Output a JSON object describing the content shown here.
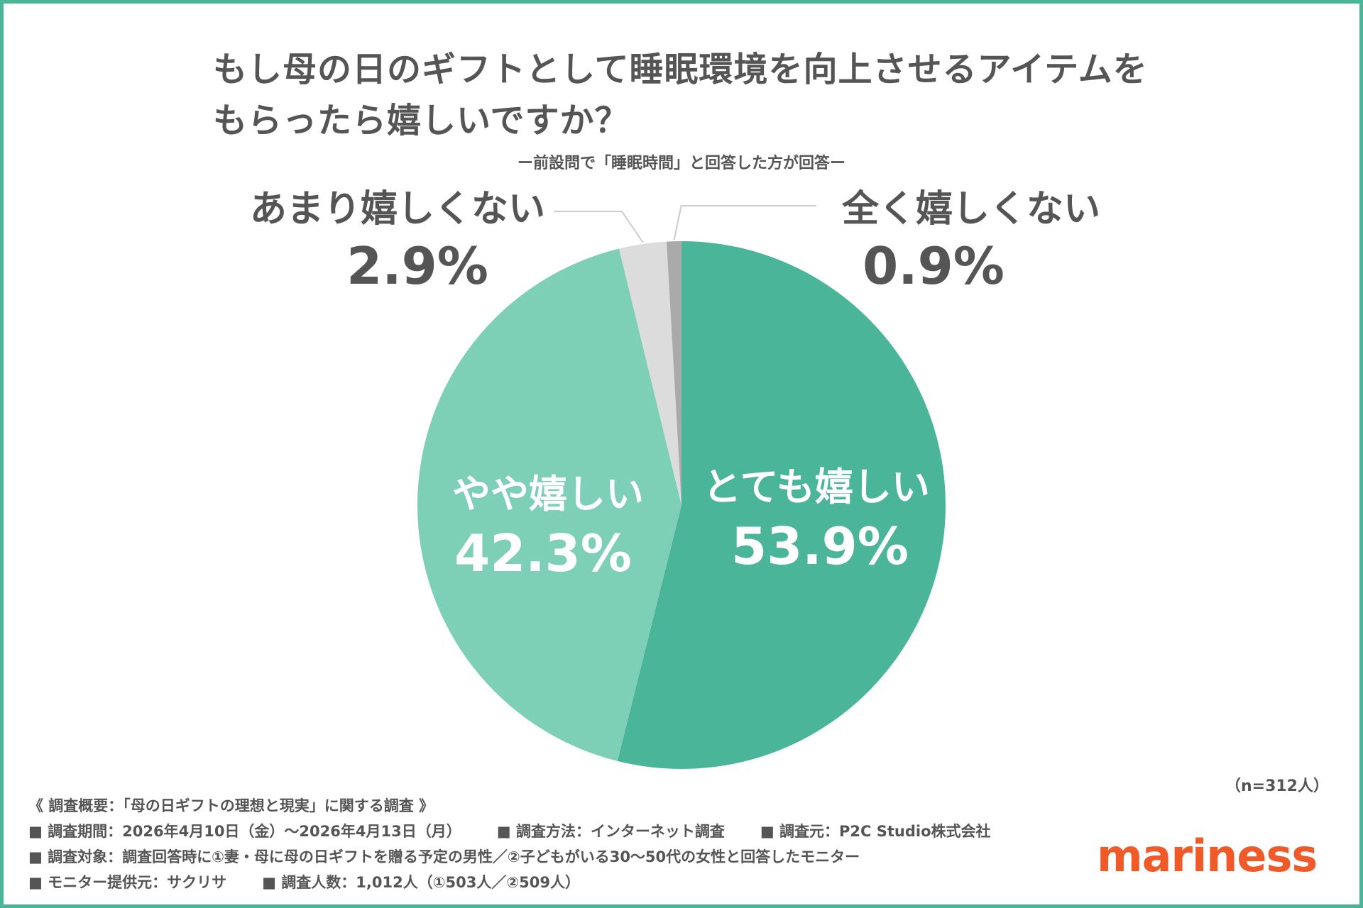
{
  "title_line1": "もし母の日のギフトとして睡眠環境を向上させるアイテムを",
  "title_line2": "もらったら嬉しいですか？",
  "subtitle": "ー前設問で「睡眠時間」と回答した方が回答ー",
  "n_label": "（n=312人）",
  "brand": "mariness",
  "colors": {
    "frame": "#4bb59a",
    "very_happy": "#4bb59a",
    "somewhat_happy": "#7dcfb6",
    "not_very": "#dcdcdc",
    "not_at_all": "#aaaaaa"
  },
  "chart_data": {
    "type": "pie",
    "start_angle_deg": 0,
    "direction": "clockwise",
    "slices": [
      {
        "label": "とても嬉しい",
        "value": 53.9,
        "display": "53.9%",
        "color": "#4bb59a"
      },
      {
        "label": "やや嬉しい",
        "value": 42.3,
        "display": "42.3%",
        "color": "#7dcfb6"
      },
      {
        "label": "あまり嬉しくない",
        "value": 2.9,
        "display": "2.9%",
        "color": "#dcdcdc"
      },
      {
        "label": "全く嬉しくない",
        "value": 0.9,
        "display": "0.9%",
        "color": "#aaaaaa"
      }
    ]
  },
  "footer": {
    "heading": "《 調査概要：「母の日ギフトの理想と現実」に関する調査 》",
    "period": "■ 調査期間：2026年4月10日（金）〜2026年4月13日（月）",
    "method": "■ 調査方法：インターネット調査",
    "source": "■ 調査元：P2C Studio株式会社",
    "target": "■ 調査対象：調査回答時に①妻・母に母の日ギフトを贈る予定の男性／②子どもがいる30〜50代の女性と回答したモニター",
    "provider": "■ モニター提供元：サクリサ",
    "count": "■ 調査人数：1,012人（①503人／②509人）"
  }
}
